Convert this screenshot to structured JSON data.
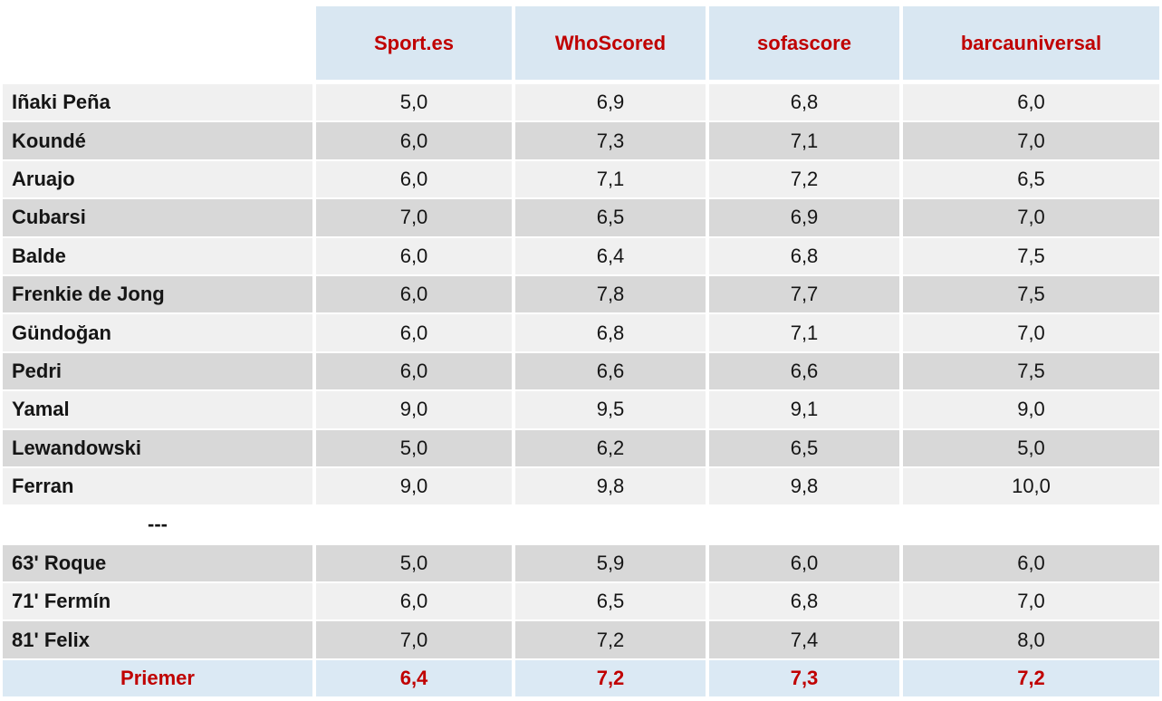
{
  "colors": {
    "header_bg": "#d9e7f2",
    "footer_bg": "#dbe9f4",
    "row_light": "#f0f0f0",
    "row_dark": "#d8d8d8",
    "accent_red": "#c00000",
    "text": "#151515"
  },
  "table": {
    "columns": [
      "Sport.es",
      "WhoScored",
      "sofascore",
      "barcauniversal"
    ],
    "starters": [
      {
        "name": "Iñaki Peña",
        "ratings": [
          "5,0",
          "6,9",
          "6,8",
          "6,0"
        ]
      },
      {
        "name": "Koundé",
        "ratings": [
          "6,0",
          "7,3",
          "7,1",
          "7,0"
        ]
      },
      {
        "name": "Aruajo",
        "ratings": [
          "6,0",
          "7,1",
          "7,2",
          "6,5"
        ]
      },
      {
        "name": "Cubarsi",
        "ratings": [
          "7,0",
          "6,5",
          "6,9",
          "7,0"
        ]
      },
      {
        "name": "Balde",
        "ratings": [
          "6,0",
          "6,4",
          "6,8",
          "7,5"
        ]
      },
      {
        "name": "Frenkie de Jong",
        "ratings": [
          "6,0",
          "7,8",
          "7,7",
          "7,5"
        ]
      },
      {
        "name": "Gündoğan",
        "ratings": [
          "6,0",
          "6,8",
          "7,1",
          "7,0"
        ]
      },
      {
        "name": "Pedri",
        "ratings": [
          "6,0",
          "6,6",
          "6,6",
          "7,5"
        ]
      },
      {
        "name": "Yamal",
        "ratings": [
          "9,0",
          "9,5",
          "9,1",
          "9,0"
        ]
      },
      {
        "name": "Lewandowski",
        "ratings": [
          "5,0",
          "6,2",
          "6,5",
          "5,0"
        ]
      },
      {
        "name": "Ferran",
        "ratings": [
          "9,0",
          "9,8",
          "9,8",
          "10,0"
        ]
      }
    ],
    "separator": {
      "label": "---"
    },
    "substitutes": [
      {
        "name": "63' Roque",
        "ratings": [
          "5,0",
          "5,9",
          "6,0",
          "6,0"
        ]
      },
      {
        "name": "71' Fermín",
        "ratings": [
          "6,0",
          "6,5",
          "6,8",
          "7,0"
        ]
      },
      {
        "name": "81' Felix",
        "ratings": [
          "7,0",
          "7,2",
          "7,4",
          "8,0"
        ]
      }
    ],
    "footer": {
      "label": "Priemer",
      "ratings": [
        "6,4",
        "7,2",
        "7,3",
        "7,2"
      ]
    }
  },
  "chart_data": {
    "type": "table",
    "title": "",
    "columns": [
      "",
      "Sport.es",
      "WhoScored",
      "sofascore",
      "barcauniversal"
    ],
    "decimal_separator": ",",
    "rows": [
      [
        "Iñaki Peña",
        5.0,
        6.9,
        6.8,
        6.0
      ],
      [
        "Koundé",
        6.0,
        7.3,
        7.1,
        7.0
      ],
      [
        "Aruajo",
        6.0,
        7.1,
        7.2,
        6.5
      ],
      [
        "Cubarsi",
        7.0,
        6.5,
        6.9,
        7.0
      ],
      [
        "Balde",
        6.0,
        6.4,
        6.8,
        7.5
      ],
      [
        "Frenkie de Jong",
        6.0,
        7.8,
        7.7,
        7.5
      ],
      [
        "Gündoğan",
        6.0,
        6.8,
        7.1,
        7.0
      ],
      [
        "Pedri",
        6.0,
        6.6,
        6.6,
        7.5
      ],
      [
        "Yamal",
        9.0,
        9.5,
        9.1,
        9.0
      ],
      [
        "Lewandowski",
        5.0,
        6.2,
        6.5,
        5.0
      ],
      [
        "Ferran",
        9.0,
        9.8,
        9.8,
        10.0
      ],
      [
        "63' Roque",
        5.0,
        5.9,
        6.0,
        6.0
      ],
      [
        "71' Fermín",
        6.0,
        6.5,
        6.8,
        7.0
      ],
      [
        "81' Felix",
        7.0,
        7.2,
        7.4,
        8.0
      ],
      [
        "Priemer",
        6.4,
        7.2,
        7.3,
        7.2
      ]
    ],
    "sections": {
      "starters_rows": [
        0,
        10
      ],
      "substitutes_rows": [
        11,
        13
      ],
      "average_row": 14
    },
    "layout": {
      "striped": true,
      "header_style": "light-blue background, dark-red bold text",
      "average_row_style": "light-blue background, dark-red bold text"
    }
  }
}
